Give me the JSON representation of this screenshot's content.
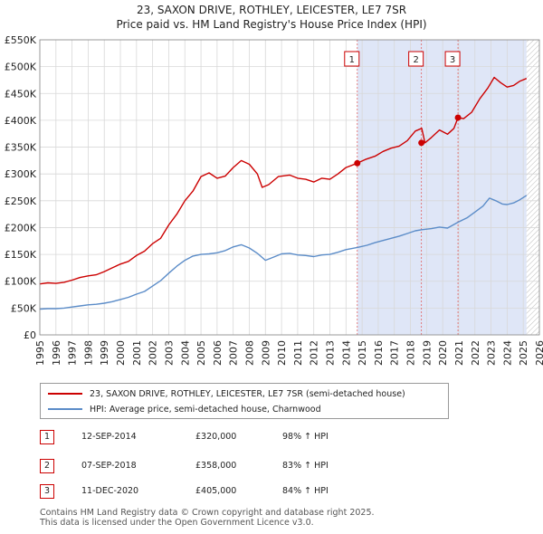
{
  "title_line1": "23, SAXON DRIVE, ROTHLEY, LEICESTER, LE7 7SR",
  "title_line2": "Price paid vs. HM Land Registry's House Price Index (HPI)",
  "chart_data": {
    "type": "line",
    "xlim": [
      1995,
      2026
    ],
    "ylim": [
      0,
      550000
    ],
    "x_ticks": [
      "1995",
      "1996",
      "1997",
      "1998",
      "1999",
      "2000",
      "2001",
      "2002",
      "2003",
      "2004",
      "2005",
      "2006",
      "2007",
      "2008",
      "2009",
      "2010",
      "2011",
      "2012",
      "2013",
      "2014",
      "2015",
      "2016",
      "2017",
      "2018",
      "2019",
      "2020",
      "2021",
      "2022",
      "2023",
      "2024",
      "2025",
      "2026"
    ],
    "y_ticks": [
      {
        "value": 0,
        "label": "£0"
      },
      {
        "value": 50000,
        "label": "£50K"
      },
      {
        "value": 100000,
        "label": "£100K"
      },
      {
        "value": 150000,
        "label": "£150K"
      },
      {
        "value": 200000,
        "label": "£200K"
      },
      {
        "value": 250000,
        "label": "£250K"
      },
      {
        "value": 300000,
        "label": "£300K"
      },
      {
        "value": 350000,
        "label": "£350K"
      },
      {
        "value": 400000,
        "label": "£400K"
      },
      {
        "value": 450000,
        "label": "£450K"
      },
      {
        "value": 500000,
        "label": "£500K"
      },
      {
        "value": 550000,
        "label": "£550K"
      }
    ],
    "shaded_range": [
      2014.7,
      2025.2
    ],
    "hatched_from": 2025.2,
    "series": [
      {
        "name": "23, SAXON DRIVE, ROTHLEY, LEICESTER, LE7 7SR (semi-detached house)",
        "color": "#cc0000",
        "points": [
          [
            1995,
            95000
          ],
          [
            1995.5,
            97000
          ],
          [
            1996,
            96000
          ],
          [
            1996.5,
            98000
          ],
          [
            1997,
            102000
          ],
          [
            1997.5,
            107000
          ],
          [
            1998,
            110000
          ],
          [
            1998.5,
            112000
          ],
          [
            1999,
            118000
          ],
          [
            1999.5,
            125000
          ],
          [
            2000,
            132000
          ],
          [
            2000.5,
            137000
          ],
          [
            2001,
            148000
          ],
          [
            2001.5,
            156000
          ],
          [
            2002,
            170000
          ],
          [
            2002.5,
            180000
          ],
          [
            2003,
            205000
          ],
          [
            2003.5,
            225000
          ],
          [
            2004,
            250000
          ],
          [
            2004.5,
            268000
          ],
          [
            2005,
            295000
          ],
          [
            2005.5,
            302000
          ],
          [
            2006,
            292000
          ],
          [
            2006.5,
            296000
          ],
          [
            2007,
            312000
          ],
          [
            2007.5,
            325000
          ],
          [
            2008,
            318000
          ],
          [
            2008.5,
            300000
          ],
          [
            2008.8,
            275000
          ],
          [
            2009.2,
            280000
          ],
          [
            2009.8,
            295000
          ],
          [
            2010.5,
            298000
          ],
          [
            2011,
            292000
          ],
          [
            2011.5,
            290000
          ],
          [
            2012,
            285000
          ],
          [
            2012.5,
            292000
          ],
          [
            2013,
            290000
          ],
          [
            2013.5,
            300000
          ],
          [
            2014,
            312000
          ],
          [
            2014.7,
            320000
          ],
          [
            2015.2,
            327000
          ],
          [
            2015.8,
            333000
          ],
          [
            2016.3,
            342000
          ],
          [
            2016.8,
            348000
          ],
          [
            2017.3,
            352000
          ],
          [
            2017.8,
            362000
          ],
          [
            2018.3,
            380000
          ],
          [
            2018.7,
            385000
          ],
          [
            2018.9,
            358000
          ],
          [
            2019.3,
            368000
          ],
          [
            2019.8,
            382000
          ],
          [
            2020.3,
            374000
          ],
          [
            2020.7,
            385000
          ],
          [
            2020.95,
            405000
          ],
          [
            2021.3,
            403000
          ],
          [
            2021.8,
            415000
          ],
          [
            2022.3,
            440000
          ],
          [
            2022.8,
            460000
          ],
          [
            2023.2,
            480000
          ],
          [
            2023.6,
            470000
          ],
          [
            2024,
            462000
          ],
          [
            2024.4,
            465000
          ],
          [
            2024.8,
            473000
          ],
          [
            2025.2,
            478000
          ]
        ]
      },
      {
        "name": "HPI: Average price, semi-detached house, Charnwood",
        "color": "#5b8cc8",
        "points": [
          [
            1995,
            48000
          ],
          [
            1995.5,
            49000
          ],
          [
            1996,
            49000
          ],
          [
            1996.5,
            50000
          ],
          [
            1997,
            52000
          ],
          [
            1997.5,
            54000
          ],
          [
            1998,
            56000
          ],
          [
            1998.5,
            57000
          ],
          [
            1999,
            59000
          ],
          [
            1999.5,
            62000
          ],
          [
            2000,
            66000
          ],
          [
            2000.5,
            70000
          ],
          [
            2001,
            76000
          ],
          [
            2001.5,
            81000
          ],
          [
            2002,
            91000
          ],
          [
            2002.5,
            101000
          ],
          [
            2003,
            115000
          ],
          [
            2003.5,
            128000
          ],
          [
            2004,
            139000
          ],
          [
            2004.5,
            147000
          ],
          [
            2005,
            150000
          ],
          [
            2005.5,
            151000
          ],
          [
            2006,
            153000
          ],
          [
            2006.5,
            157000
          ],
          [
            2007,
            164000
          ],
          [
            2007.5,
            168000
          ],
          [
            2008,
            162000
          ],
          [
            2008.5,
            152000
          ],
          [
            2009,
            139000
          ],
          [
            2009.5,
            145000
          ],
          [
            2010,
            151000
          ],
          [
            2010.5,
            152000
          ],
          [
            2011,
            149000
          ],
          [
            2011.5,
            148000
          ],
          [
            2012,
            146000
          ],
          [
            2012.5,
            149000
          ],
          [
            2013,
            150000
          ],
          [
            2013.5,
            154000
          ],
          [
            2014,
            159000
          ],
          [
            2014.7,
            163000
          ],
          [
            2015.3,
            167000
          ],
          [
            2015.8,
            172000
          ],
          [
            2016.3,
            176000
          ],
          [
            2016.8,
            180000
          ],
          [
            2017.3,
            184000
          ],
          [
            2017.8,
            189000
          ],
          [
            2018.3,
            194000
          ],
          [
            2018.7,
            196000
          ],
          [
            2019.3,
            198000
          ],
          [
            2019.8,
            201000
          ],
          [
            2020.3,
            199000
          ],
          [
            2020.95,
            210000
          ],
          [
            2021.5,
            218000
          ],
          [
            2022,
            229000
          ],
          [
            2022.5,
            240000
          ],
          [
            2022.9,
            255000
          ],
          [
            2023.3,
            250000
          ],
          [
            2023.7,
            244000
          ],
          [
            2024,
            243000
          ],
          [
            2024.4,
            246000
          ],
          [
            2024.8,
            252000
          ],
          [
            2025.2,
            260000
          ]
        ]
      }
    ],
    "sales": [
      {
        "label": "1",
        "x": 2014.7,
        "price": 320000
      },
      {
        "label": "2",
        "x": 2018.68,
        "price": 358000
      },
      {
        "label": "3",
        "x": 2020.95,
        "price": 405000
      }
    ]
  },
  "legend": [
    {
      "label": "23, SAXON DRIVE, ROTHLEY, LEICESTER, LE7 7SR (semi-detached house)",
      "color": "#cc0000"
    },
    {
      "label": "HPI: Average price, semi-detached house, Charnwood",
      "color": "#5b8cc8"
    }
  ],
  "transactions": [
    {
      "num": "1",
      "date": "12-SEP-2014",
      "price": "£320,000",
      "hpi": "98% ↑ HPI"
    },
    {
      "num": "2",
      "date": "07-SEP-2018",
      "price": "£358,000",
      "hpi": "83% ↑ HPI"
    },
    {
      "num": "3",
      "date": "11-DEC-2020",
      "price": "£405,000",
      "hpi": "84% ↑ HPI"
    }
  ],
  "footer": {
    "line1": "Contains HM Land Registry data © Crown copyright and database right 2025.",
    "line2": "This data is licensed under the Open Government Licence v3.0."
  }
}
